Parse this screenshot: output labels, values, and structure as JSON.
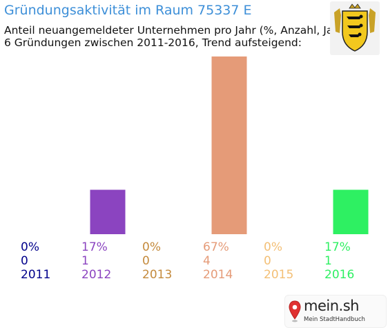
{
  "title": "Gründungsaktivität im Raum 75337 E",
  "subtitle_line1": "Anteil neuangemeldeter Unternehmen pro Jahr (%, Anzahl, Jahr)",
  "subtitle_line2": "6 Gründungen zwischen 2011-2016, Trend aufsteigend:",
  "logo": {
    "name": "mein.sh",
    "tagline": "Mein StadtHandbuch",
    "icon": "location-pin-icon"
  },
  "crest": {
    "icon": "coat-of-arms-icon",
    "colors": {
      "shield": "#f2c81e",
      "lions": "#111111",
      "supporters": "#c9a227"
    }
  },
  "chart_data": {
    "type": "bar",
    "categories": [
      "2011",
      "2012",
      "2013",
      "2014",
      "2015",
      "2016"
    ],
    "percent_labels": [
      "0%",
      "17%",
      "0%",
      "67%",
      "0%",
      "17%"
    ],
    "values": [
      0,
      1,
      0,
      4,
      0,
      1
    ],
    "colors": [
      "#00008b",
      "#8b44c0",
      "#c48a3c",
      "#e59b78",
      "#f3bf75",
      "#2ef062"
    ],
    "label_colors": [
      "#00008b",
      "#8b44c0",
      "#c48a3c",
      "#e59b78",
      "#f3bf75",
      "#2ef062"
    ],
    "ylim": [
      0,
      4
    ],
    "grid": false,
    "legend": "none"
  }
}
